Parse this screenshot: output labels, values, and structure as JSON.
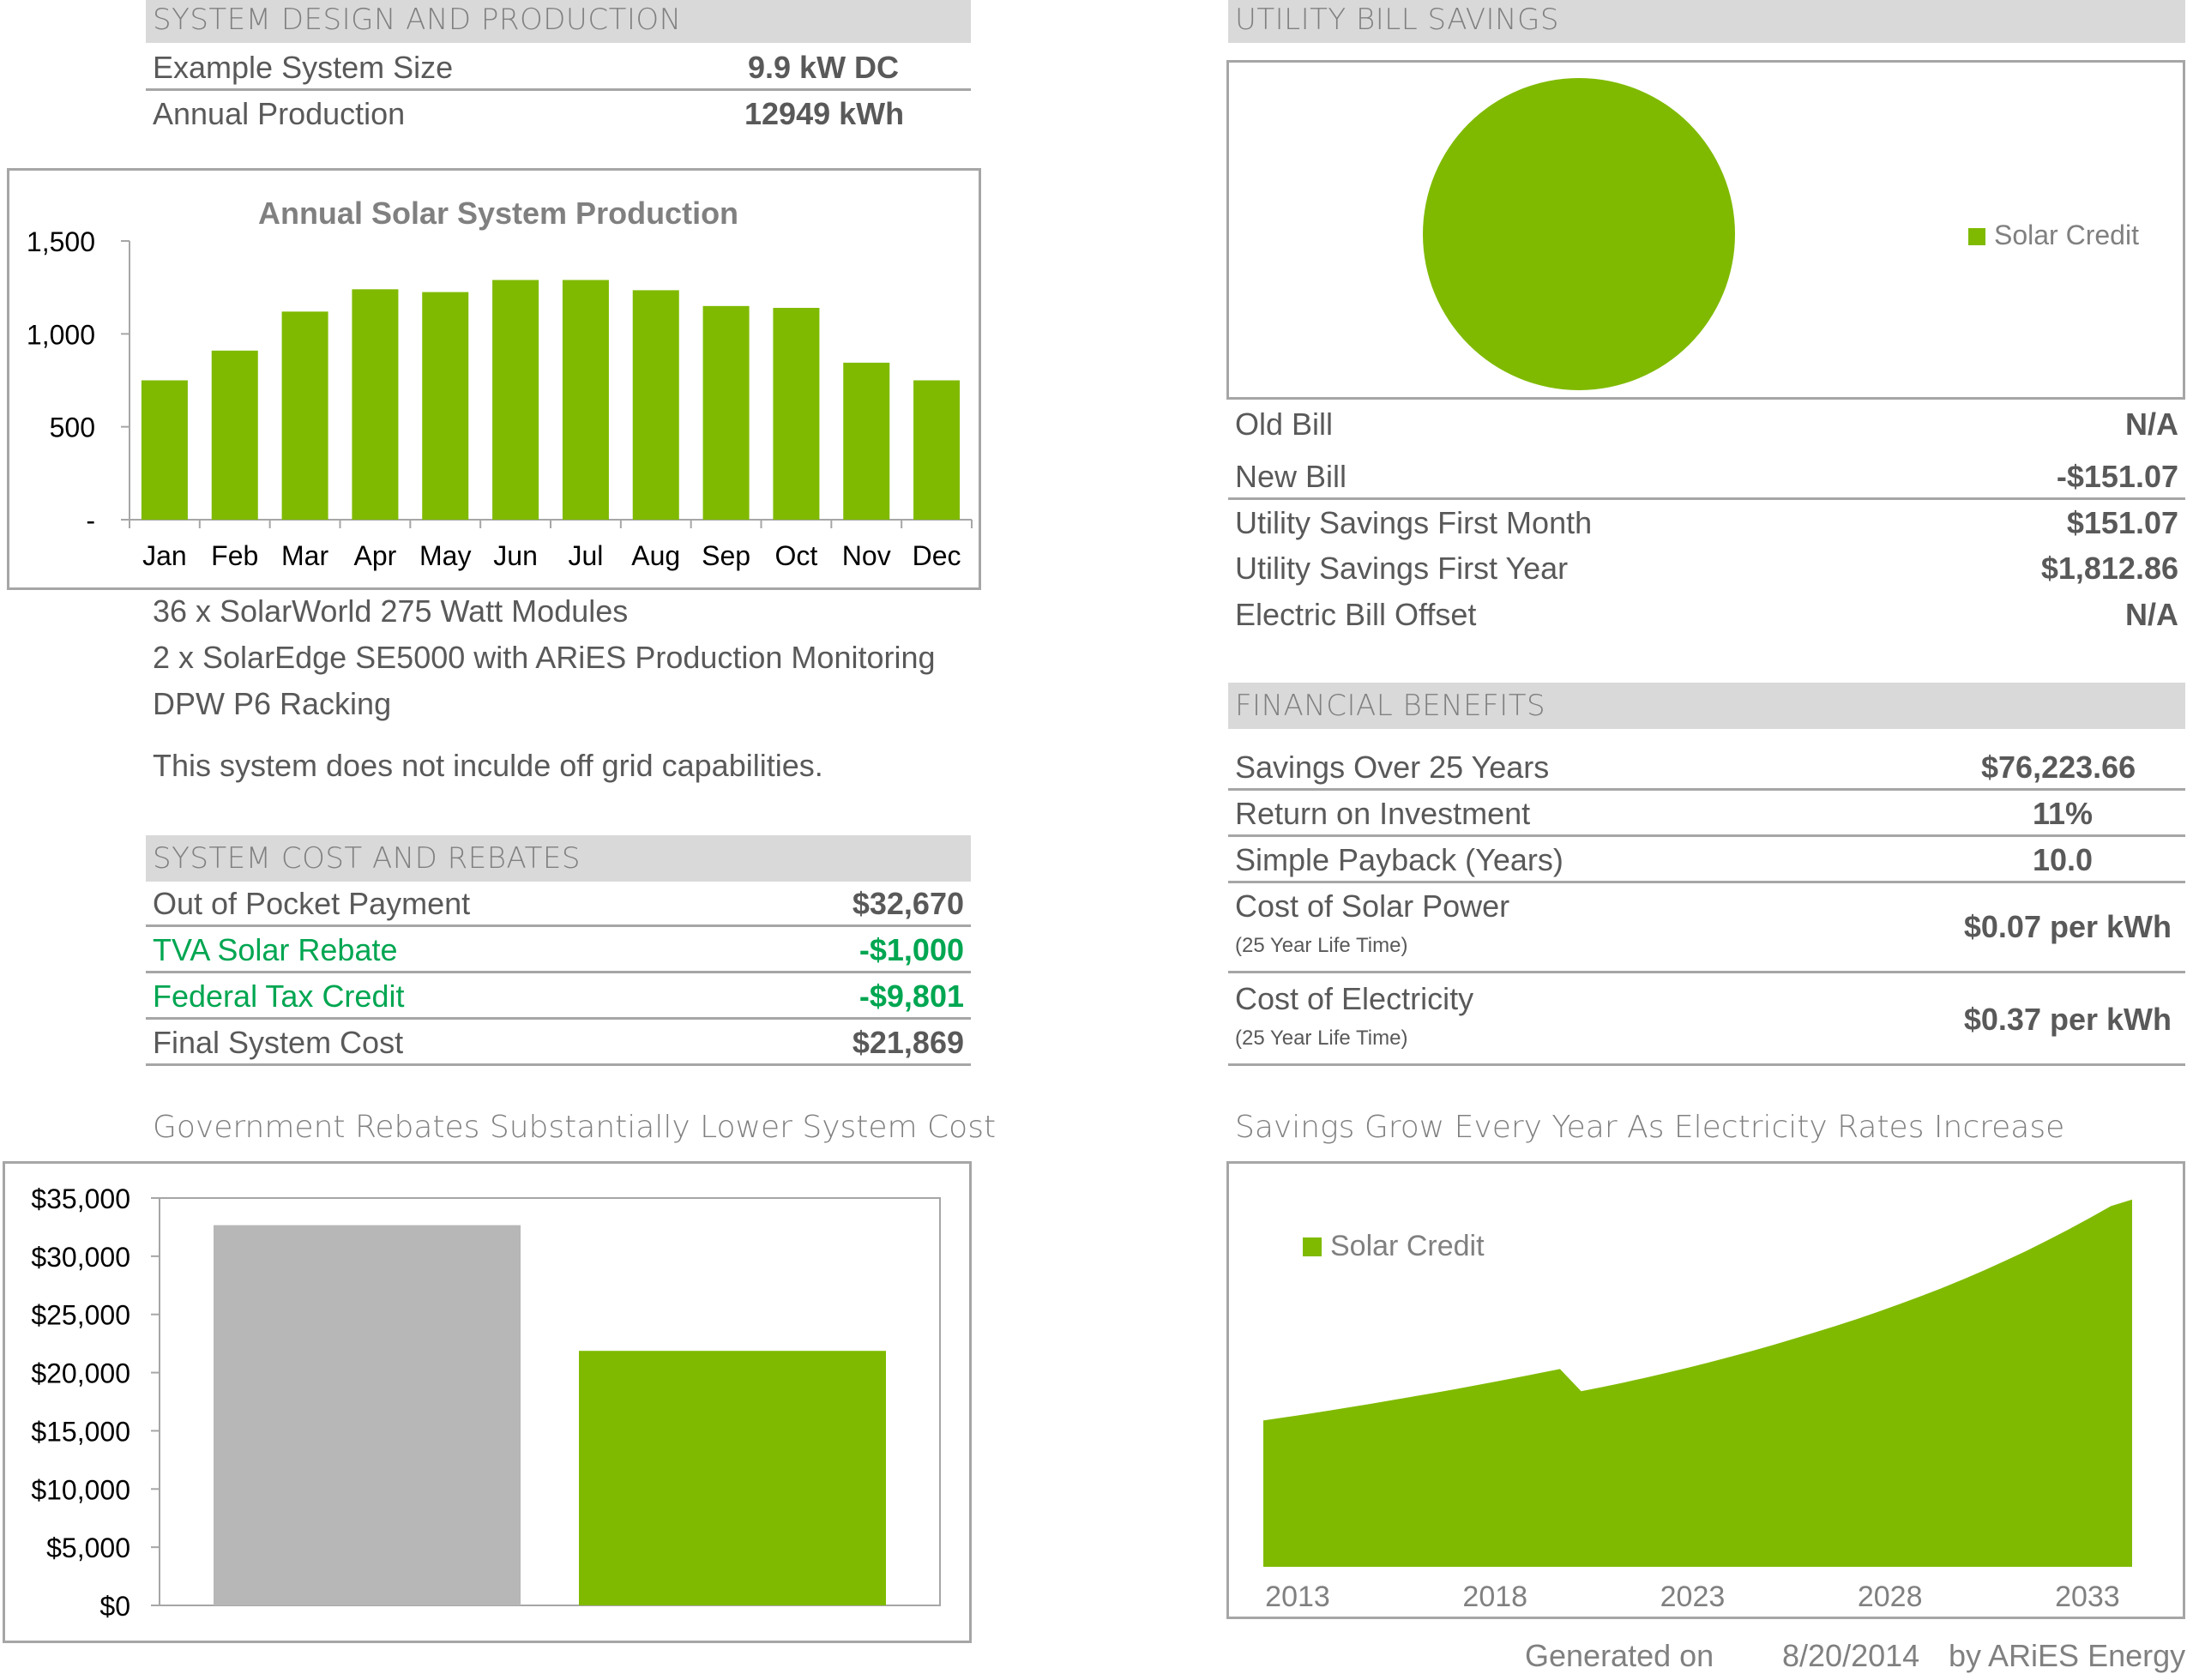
{
  "system_design": {
    "header": "SYSTEM DESIGN AND PRODUCTION",
    "rows": [
      {
        "label": "Example System Size",
        "value": "9.9 kW DC"
      },
      {
        "label": "Annual Production",
        "value": "12949 kWh"
      }
    ]
  },
  "production_chart": {
    "chart_data": {
      "type": "bar",
      "title": "Annual Solar System Production",
      "categories": [
        "Jan",
        "Feb",
        "Mar",
        "Apr",
        "May",
        "Jun",
        "Jul",
        "Aug",
        "Sep",
        "Oct",
        "Nov",
        "Dec"
      ],
      "values": [
        750,
        910,
        1120,
        1240,
        1225,
        1290,
        1290,
        1235,
        1150,
        1140,
        845,
        750
      ],
      "ylim": [
        0,
        1500
      ],
      "yticks": [
        0,
        500,
        1000,
        1500
      ],
      "ytick_labels": [
        "-",
        "500",
        "1,000",
        "1,500"
      ],
      "color": "#7fba00"
    }
  },
  "equipment": {
    "lines": [
      "36 x SolarWorld 275 Watt Modules",
      "2 x SolarEdge SE5000 with ARiES Production Monitoring",
      "DPW P6 Racking"
    ],
    "note": "This system does not inculde off grid capabilities."
  },
  "cost": {
    "header": "SYSTEM COST AND REBATES",
    "rows": [
      {
        "label": "Out of Pocket Payment",
        "value": "$32,670",
        "green": false
      },
      {
        "label": "TVA Solar Rebate",
        "value": "-$1,000",
        "green": true
      },
      {
        "label": "Federal Tax Credit",
        "value": "-$9,801",
        "green": true
      },
      {
        "label": "Final System Cost",
        "value": "$21,869",
        "green": false
      }
    ]
  },
  "rebate_chart": {
    "title": "Government Rebates Substantially Lower System Cost",
    "chart_data": {
      "type": "bar",
      "values": [
        32670,
        21869
      ],
      "colors": [
        "#b7b7b7",
        "#7fba00"
      ],
      "ylim": [
        0,
        35000
      ],
      "yticks": [
        0,
        5000,
        10000,
        15000,
        20000,
        25000,
        30000,
        35000
      ],
      "ytick_labels": [
        "$0",
        "$5,000",
        "$10,000",
        "$15,000",
        "$20,000",
        "$25,000",
        "$30,000",
        "$35,000"
      ]
    }
  },
  "utility": {
    "header": "UTILITY BILL SAVINGS",
    "pie": {
      "chart_data": {
        "type": "pie",
        "slices": [
          {
            "name": "Solar Credit",
            "value": 100
          }
        ],
        "legend": "right",
        "color": "#7fba00"
      }
    },
    "rows": [
      {
        "label": "Old Bill",
        "value": "N/A"
      },
      {
        "label": "New Bill",
        "value": "-$151.07"
      },
      {
        "label": "Utility Savings First Month",
        "value": "$151.07"
      },
      {
        "label": "Utility Savings First Year",
        "value": "$1,812.86"
      },
      {
        "label": "Electric Bill Offset",
        "value": "N/A"
      }
    ]
  },
  "financial": {
    "header": "FINANCIAL BENEFITS",
    "rows": [
      {
        "label": "Savings Over 25 Years",
        "value": "$76,223.66"
      },
      {
        "label": "Return on Investment",
        "value": "11%"
      },
      {
        "label": "Simple Payback (Years)",
        "value": "10.0"
      }
    ],
    "cost_rows": [
      {
        "label": "Cost of Solar Power",
        "sub": "(25 Year Life Time)",
        "value": "$0.07 per kWh"
      },
      {
        "label": "Cost of Electricity",
        "sub": "(25 Year Life Time)",
        "value": "$0.37 per kWh"
      }
    ]
  },
  "savings_chart": {
    "title": "Savings Grow Every Year As Electricity Rates Increase",
    "chart_data": {
      "type": "area",
      "series": [
        {
          "name": "Solar Credit",
          "values": [
            1318,
            1346,
            1375,
            1405,
            1436,
            1467,
            1499,
            1532,
            1565,
            1599,
            1634,
            1670,
            1707,
            1744,
            1782,
            1582,
            1620,
            1660,
            1702,
            1746,
            1792,
            1840,
            1890,
            1942,
            1996,
            2052,
            2110,
            2170,
            2232,
            2297,
            2365,
            2436,
            2510,
            2588,
            2670,
            2756,
            2846,
            2941,
            3040,
            3143,
            3250,
            3309
          ]
        }
      ],
      "x_start": 2013,
      "x_end": 2035,
      "xticks": [
        2013,
        2018,
        2023,
        2028,
        2033
      ],
      "legend": "top-left",
      "color": "#7fba00"
    }
  },
  "footer": {
    "generated": "Generated on",
    "date": "8/20/2014",
    "by": "by ARiES Energy"
  }
}
